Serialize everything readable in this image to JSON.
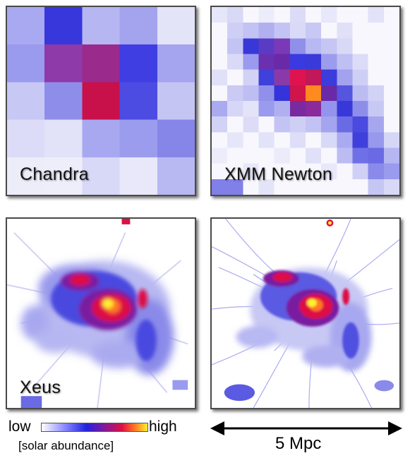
{
  "panels": {
    "chandra": {
      "label": "Chandra"
    },
    "xmm": {
      "label": "XMM Newton"
    },
    "xeus": {
      "label": "Xeus"
    }
  },
  "colorbar": {
    "low": "low",
    "high": "high",
    "unit": "[solar abundance]",
    "colors": [
      "#ffffff",
      "#8888ff",
      "#2222dd",
      "#7a1aa0",
      "#dd1144",
      "#ff7722",
      "#ffee33"
    ]
  },
  "scale_bar": {
    "text": "5 Mpc"
  }
}
